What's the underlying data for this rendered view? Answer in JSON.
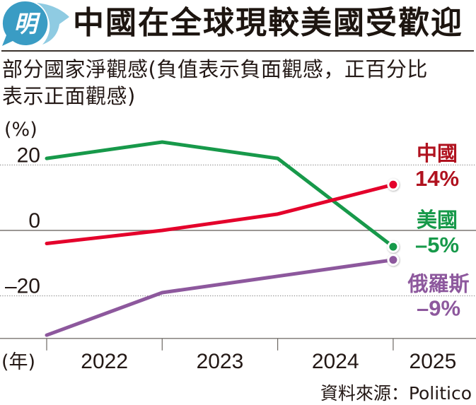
{
  "header": {
    "logo_char": "明",
    "logo_colors": {
      "primary": "#3a9cc4",
      "secondary": "#8fcbe2"
    },
    "title": "中國在全球現較美國受歡迎"
  },
  "subtitle": {
    "line1": "部分國家淨觀感(負值表示負面觀感，正百分比",
    "line2": "表示正面觀感)"
  },
  "chart_data": {
    "type": "line",
    "title": "中國在全球現較美國受歡迎",
    "subtitle": "部分國家淨觀感(負值表示負面觀感，正百分比表示正面觀感)",
    "x": [
      2022,
      2023,
      2024,
      2025
    ],
    "categories": [
      "2022",
      "2023",
      "2024",
      "2025"
    ],
    "xlabel": "(年)",
    "ylabel": "(%)",
    "yticks": [
      20,
      0,
      -20
    ],
    "ytick_labels": [
      "20",
      "0",
      "–20"
    ],
    "ylim": [
      -33,
      30
    ],
    "grid": true,
    "legend": "right (end-of-line labels)",
    "series": [
      {
        "name": "美國",
        "values": [
          22,
          27,
          22,
          -5
        ],
        "end_label": "–5%",
        "color": "#17994a",
        "label_color": "#17994a"
      },
      {
        "name": "中國",
        "values": [
          -4,
          0,
          5,
          14
        ],
        "end_label": "14%",
        "color": "#e4002b",
        "label_color": "#b0121f"
      },
      {
        "name": "俄羅斯",
        "values": [
          -32,
          -19,
          -14,
          -9
        ],
        "end_label": "–9%",
        "color": "#8d589d",
        "label_color": "#8d589d"
      }
    ],
    "source": "資料來源：Politico"
  }
}
